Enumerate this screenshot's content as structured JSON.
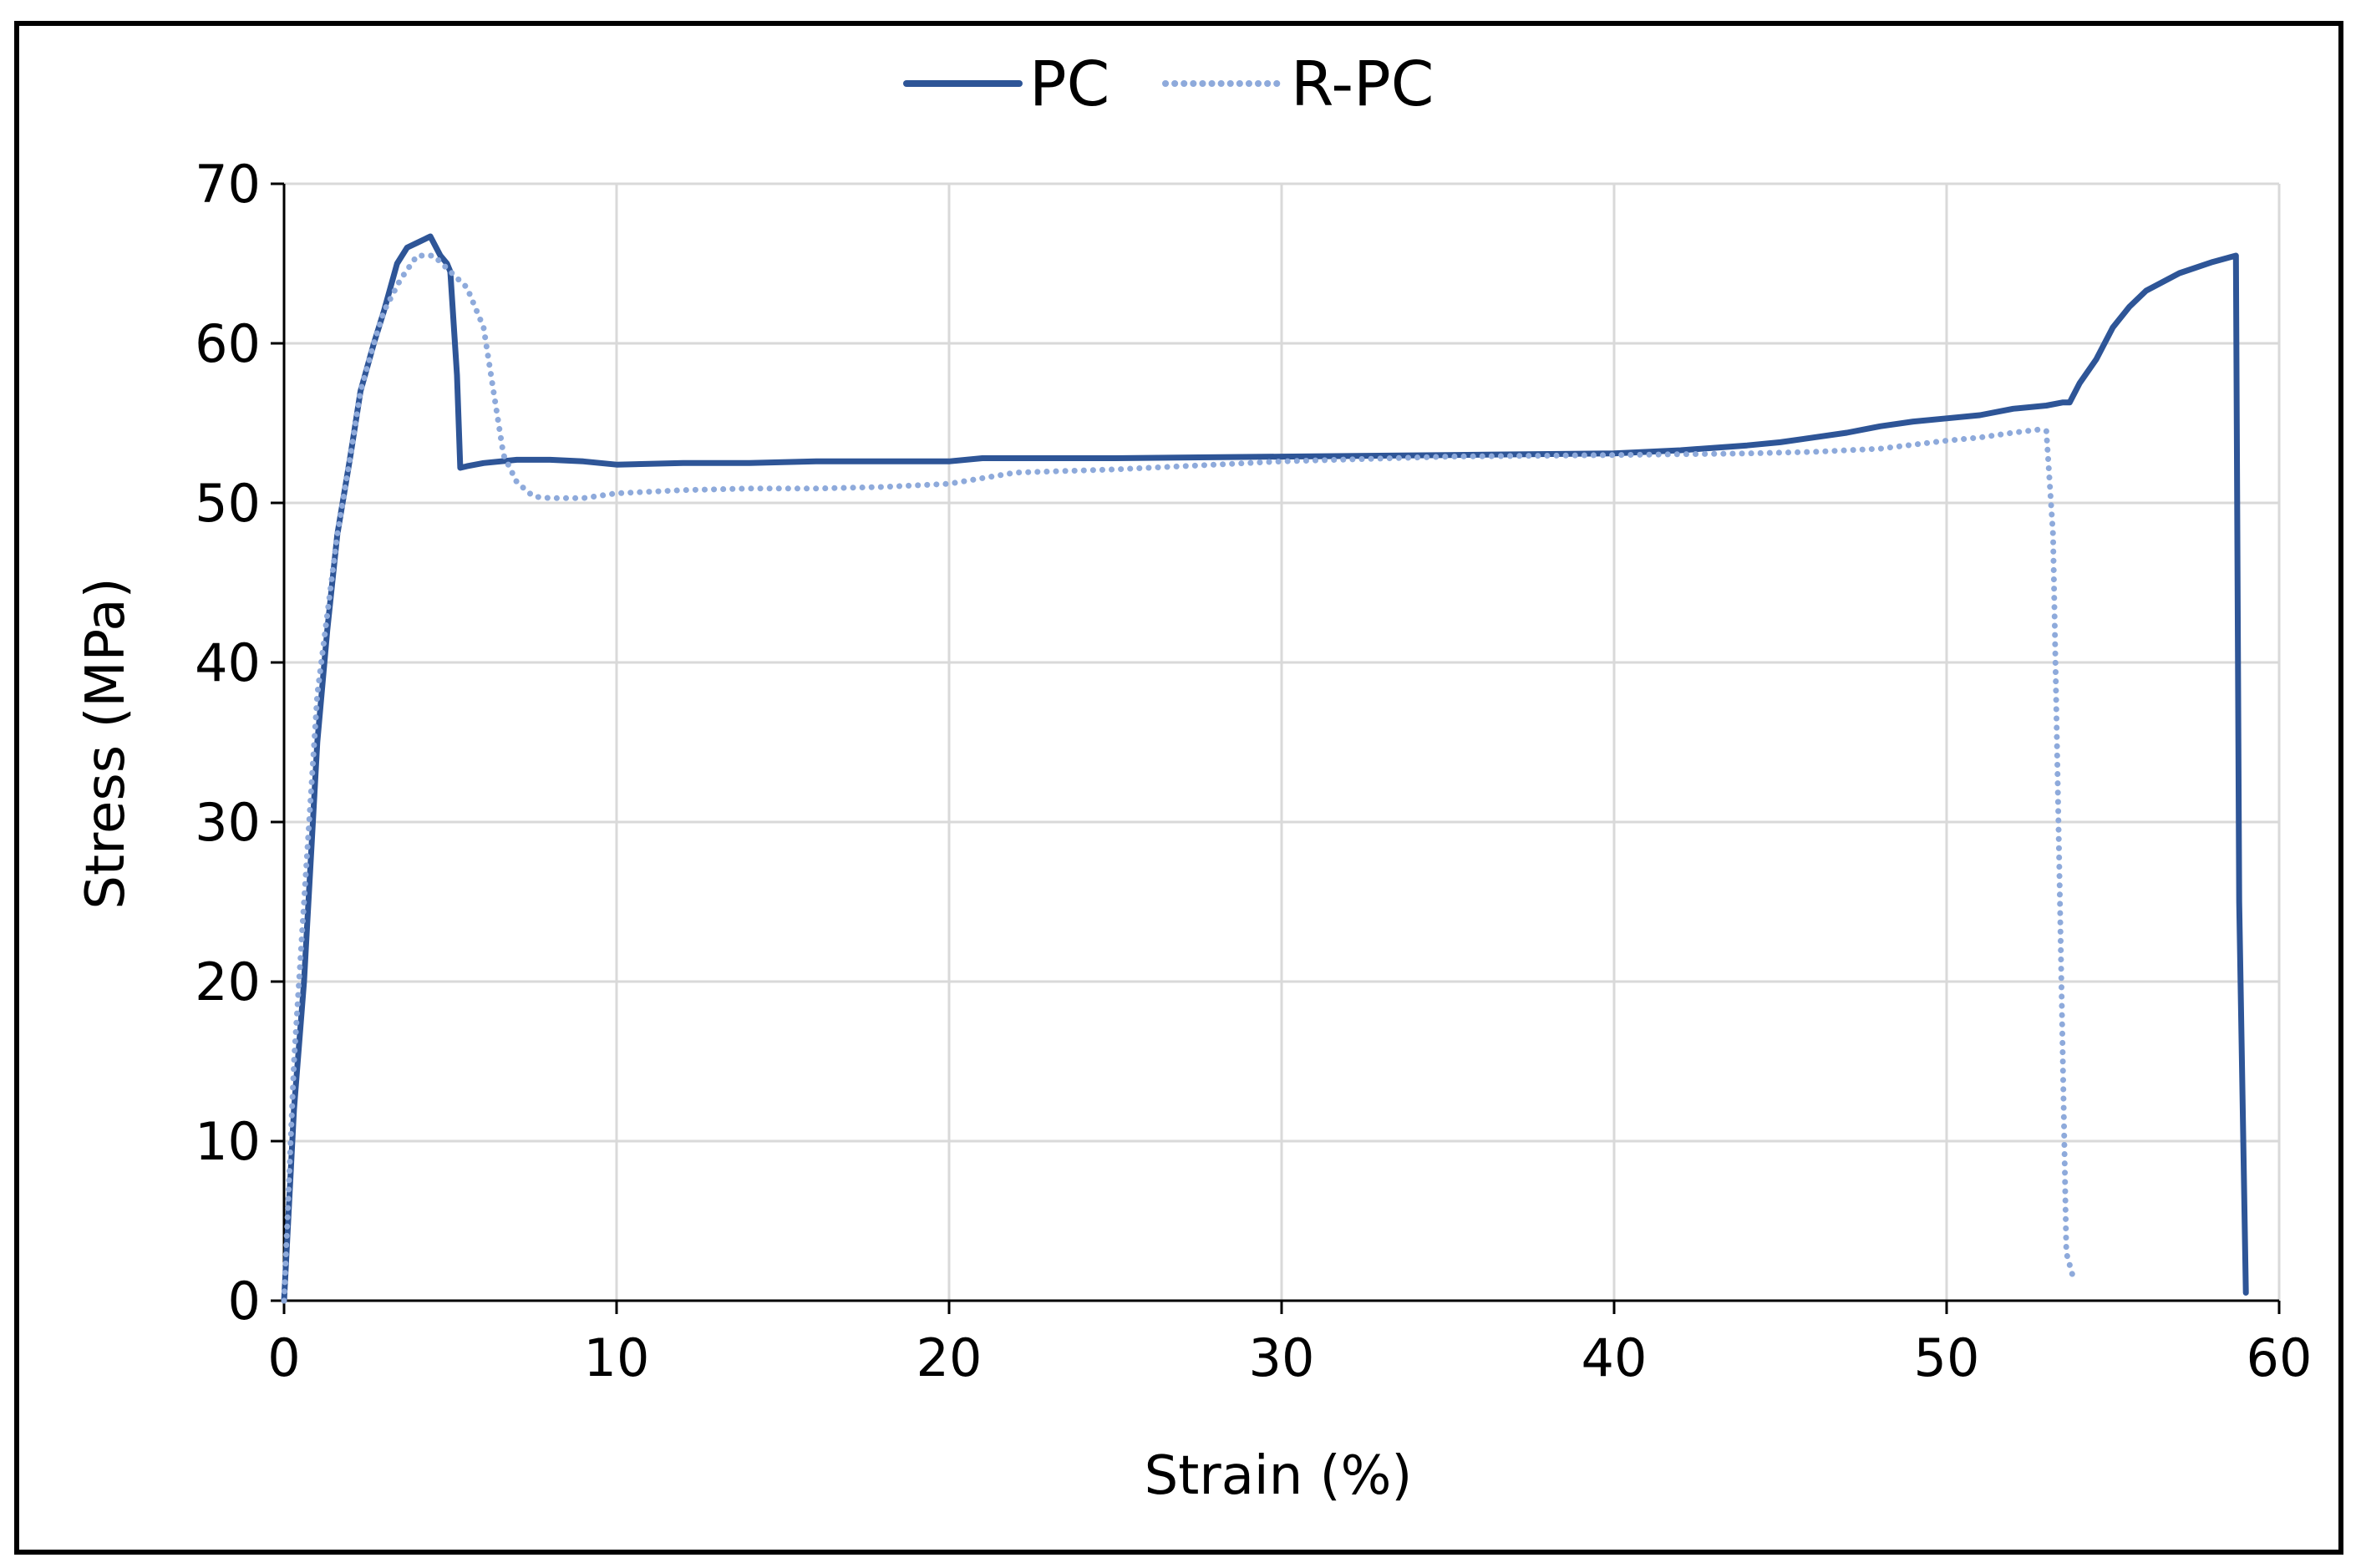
{
  "chart_data": {
    "type": "line",
    "title": "",
    "xlabel": "Strain (%)",
    "ylabel": "Stress (MPa)",
    "xlim": [
      0,
      60
    ],
    "ylim": [
      0,
      70
    ],
    "xticks": [
      0,
      10,
      20,
      30,
      40,
      50,
      60
    ],
    "yticks": [
      0,
      10,
      20,
      30,
      40,
      50,
      60,
      70
    ],
    "xtick_labels": [
      "0",
      "10",
      "20",
      "30",
      "40",
      "50",
      "60"
    ],
    "ytick_labels": [
      "0",
      "10",
      "20",
      "30",
      "40",
      "50",
      "60",
      "70"
    ],
    "grid": true,
    "legend_position": "top-center",
    "series": [
      {
        "name": "PC",
        "style": "solid",
        "color": "#2e5597",
        "x": [
          0,
          0.3,
          0.6,
          1.0,
          1.3,
          1.6,
          2.0,
          2.3,
          2.7,
          3.0,
          3.4,
          3.7,
          4.0,
          4.4,
          4.7,
          4.9,
          5.0,
          5.2,
          5.3,
          5.5,
          6,
          7,
          8,
          9,
          10,
          12,
          14,
          16,
          18,
          20,
          21,
          25,
          30,
          35,
          40,
          42,
          44,
          45,
          46,
          47,
          48,
          49,
          50,
          51,
          52,
          53,
          53.5,
          53.7,
          54,
          54.5,
          55,
          55.5,
          56,
          57,
          58,
          58.7,
          58.8,
          59
        ],
        "y": [
          0,
          12,
          20,
          35,
          42,
          48,
          53,
          57,
          60,
          62,
          65,
          66,
          66.3,
          66.7,
          65.5,
          65,
          64.5,
          58,
          52.2,
          52.3,
          52.5,
          52.7,
          52.7,
          52.6,
          52.4,
          52.5,
          52.5,
          52.6,
          52.6,
          52.6,
          52.8,
          52.8,
          52.9,
          53.0,
          53.1,
          53.3,
          53.6,
          53.8,
          54.1,
          54.4,
          54.8,
          55.1,
          55.3,
          55.5,
          55.9,
          56.1,
          56.3,
          56.3,
          57.5,
          59,
          61,
          62.3,
          63.3,
          64.4,
          65.1,
          65.5,
          25,
          0.5
        ]
      },
      {
        "name": "R-PC",
        "style": "dotted",
        "color": "#8eaadb",
        "x": [
          0,
          0.3,
          0.6,
          1.0,
          1.3,
          1.6,
          2.0,
          2.3,
          2.7,
          3.0,
          3.5,
          4.0,
          4.5,
          5.0,
          5.5,
          6.0,
          6.3,
          6.6,
          7.0,
          7.5,
          8,
          9,
          10,
          12,
          14,
          16,
          18,
          20,
          22,
          25,
          28,
          30,
          35,
          40,
          44,
          46,
          48,
          50,
          51,
          52,
          52.8,
          53.0,
          53.2,
          53.4,
          53.6,
          53.8
        ],
        "y": [
          0,
          15,
          25,
          38,
          43,
          48,
          53,
          57,
          60,
          62,
          64,
          65.5,
          65.5,
          64.5,
          63.5,
          61,
          57,
          53,
          51.3,
          50.4,
          50.3,
          50.3,
          50.6,
          50.8,
          50.9,
          50.9,
          51.0,
          51.2,
          51.9,
          52.1,
          52.4,
          52.6,
          52.9,
          53.0,
          53.1,
          53.2,
          53.4,
          53.9,
          54.1,
          54.4,
          54.6,
          54.5,
          48,
          26,
          3,
          1.5
        ]
      }
    ]
  }
}
